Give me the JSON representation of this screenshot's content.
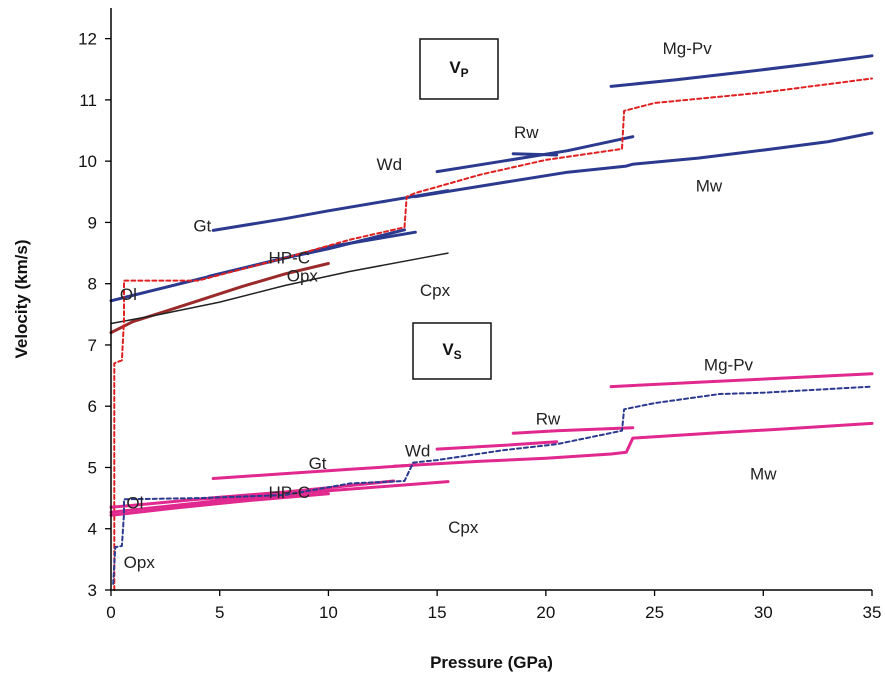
{
  "chart_data": {
    "type": "line",
    "title": "",
    "xlabel": "Pressure (GPa)",
    "ylabel": "Velocity (km/s)",
    "xlim": [
      0,
      35
    ],
    "ylim": [
      3,
      12.5
    ],
    "xticks": [
      "0",
      "5",
      "10",
      "15",
      "20",
      "25",
      "30",
      "35"
    ],
    "yticks": [
      "3",
      "4",
      "5",
      "6",
      "7",
      "8",
      "9",
      "10",
      "11",
      "12"
    ],
    "grid": false,
    "legend": "none",
    "panel_labels": {
      "vp": {
        "main": "V",
        "sub": "P"
      },
      "vs": {
        "main": "V",
        "sub": "S"
      }
    },
    "colors": {
      "vp_mineral": "#2b3a8f",
      "vs_mineral": "#e0288f",
      "opx_vp": "#9b2a2a",
      "cpx_vp": "#222222",
      "model_vp": "#e02020",
      "model_vs": "#2b3a8f"
    },
    "series": [
      {
        "name": "Ol",
        "kind": "vp-mineral",
        "x": [
          0,
          5,
          8,
          10,
          13.5
        ],
        "y": [
          7.72,
          8.16,
          8.42,
          8.57,
          8.88
        ]
      },
      {
        "name": "HP-C",
        "kind": "vp-mineral",
        "x": [
          4.5,
          8,
          10,
          14
        ],
        "y": [
          8.12,
          8.42,
          8.6,
          8.84
        ]
      },
      {
        "name": "Gt",
        "kind": "vp-mineral",
        "x": [
          4.7,
          8,
          10,
          13,
          15.5
        ],
        "y": [
          8.87,
          9.06,
          9.19,
          9.37,
          9.52
        ]
      },
      {
        "name": "Wd",
        "kind": "vp-mineral",
        "x": [
          15,
          18,
          21,
          24
        ],
        "y": [
          9.83,
          10.0,
          10.17,
          10.4
        ]
      },
      {
        "name": "Rw",
        "kind": "vp-mineral",
        "x": [
          18.5,
          20.5
        ],
        "y": [
          10.12,
          10.1
        ]
      },
      {
        "name": "Mw",
        "kind": "vp-mineral",
        "x": [
          14,
          18,
          21,
          23.7,
          24,
          27,
          30,
          33,
          35
        ],
        "y": [
          9.42,
          9.65,
          9.82,
          9.92,
          9.95,
          10.05,
          10.18,
          10.32,
          10.46
        ]
      },
      {
        "name": "Mg-Pv",
        "kind": "vp-mineral",
        "x": [
          23,
          26,
          29,
          32,
          35
        ],
        "y": [
          11.22,
          11.33,
          11.45,
          11.58,
          11.72
        ]
      },
      {
        "name": "Opx",
        "kind": "vp-opx",
        "x": [
          0,
          1,
          2.5,
          4,
          6,
          8,
          10
        ],
        "y": [
          7.2,
          7.38,
          7.55,
          7.72,
          7.95,
          8.16,
          8.33
        ]
      },
      {
        "name": "Cpx",
        "kind": "vp-cpx",
        "x": [
          0,
          2,
          5,
          8,
          11,
          14,
          15.5
        ],
        "y": [
          7.35,
          7.48,
          7.7,
          7.97,
          8.2,
          8.4,
          8.5
        ]
      },
      {
        "name": "Vp model",
        "kind": "vp-model",
        "x": [
          0.15,
          0.15,
          0.5,
          0.6,
          0.6,
          4,
          8,
          11,
          13.5,
          13.6,
          14,
          15,
          17,
          20,
          23.5,
          23.6,
          25,
          30,
          35
        ],
        "y": [
          3.0,
          6.7,
          6.75,
          7.4,
          8.05,
          8.05,
          8.42,
          8.72,
          8.92,
          9.42,
          9.48,
          9.58,
          9.78,
          10.02,
          10.2,
          10.82,
          10.95,
          11.12,
          11.35
        ]
      },
      {
        "name": "Ol",
        "kind": "vs-mineral",
        "x": [
          0,
          4,
          7,
          10
        ],
        "y": [
          4.35,
          4.48,
          4.55,
          4.62
        ]
      },
      {
        "name": "Opx",
        "kind": "vs-mineral",
        "x": [
          0,
          3,
          6,
          10
        ],
        "y": [
          4.22,
          4.34,
          4.45,
          4.57
        ]
      },
      {
        "name": "HP-C",
        "kind": "vs-mineral",
        "x": [
          4.5,
          8,
          10,
          13
        ],
        "y": [
          4.5,
          4.6,
          4.67,
          4.78
        ]
      },
      {
        "name": "Cpx",
        "kind": "vs-mineral",
        "x": [
          0,
          5,
          10,
          15.5
        ],
        "y": [
          4.27,
          4.46,
          4.62,
          4.77
        ]
      },
      {
        "name": "Gt",
        "kind": "vs-mineral",
        "x": [
          4.7,
          8,
          11,
          14
        ],
        "y": [
          4.82,
          4.9,
          4.97,
          5.04
        ]
      },
      {
        "name": "Wd",
        "kind": "vs-mineral",
        "x": [
          15,
          18,
          20.5
        ],
        "y": [
          5.3,
          5.36,
          5.42
        ]
      },
      {
        "name": "Mw",
        "kind": "vs-mineral",
        "x": [
          13,
          17,
          20,
          23,
          23.7,
          24,
          28,
          31,
          35
        ],
        "y": [
          5.02,
          5.1,
          5.15,
          5.22,
          5.25,
          5.48,
          5.57,
          5.63,
          5.72
        ]
      },
      {
        "name": "Rw",
        "kind": "vs-mineral",
        "x": [
          18.5,
          20.5,
          24
        ],
        "y": [
          5.56,
          5.6,
          5.65
        ]
      },
      {
        "name": "Mg-Pv",
        "kind": "vs-mineral",
        "x": [
          23,
          27,
          31,
          35
        ],
        "y": [
          6.32,
          6.39,
          6.46,
          6.53
        ]
      },
      {
        "name": "Vs model",
        "kind": "vs-model",
        "x": [
          0.1,
          0.2,
          0.5,
          0.6,
          0.6,
          4,
          8,
          11,
          13.5,
          13.9,
          15,
          18,
          20.5,
          23.5,
          23.6,
          25,
          28,
          30,
          35
        ],
        "y": [
          3.1,
          3.7,
          3.72,
          4.25,
          4.48,
          4.5,
          4.55,
          4.74,
          4.78,
          5.08,
          5.12,
          5.28,
          5.38,
          5.6,
          5.95,
          6.05,
          6.2,
          6.22,
          6.32
        ]
      }
    ],
    "annotations": [
      {
        "text": "Mg-Pv",
        "x": 26.5,
        "y": 11.85,
        "anchor": "middle"
      },
      {
        "text": "Rw",
        "x": 19.1,
        "y": 10.48,
        "anchor": "middle"
      },
      {
        "text": "Wd",
        "x": 12.8,
        "y": 9.95,
        "anchor": "middle"
      },
      {
        "text": "Mw",
        "x": 27.5,
        "y": 9.6,
        "anchor": "middle"
      },
      {
        "text": "Gt",
        "x": 4.2,
        "y": 8.95,
        "anchor": "middle"
      },
      {
        "text": "HP-C",
        "x": 8.2,
        "y": 8.43,
        "anchor": "middle"
      },
      {
        "text": "Opx",
        "x": 8.8,
        "y": 8.13,
        "anchor": "middle"
      },
      {
        "text": "Ol",
        "x": 0.8,
        "y": 7.83,
        "anchor": "middle"
      },
      {
        "text": "Cpx",
        "x": 14.9,
        "y": 7.9,
        "anchor": "middle"
      },
      {
        "text": "Mg-Pv",
        "x": 28.4,
        "y": 6.68,
        "anchor": "middle"
      },
      {
        "text": "Rw",
        "x": 20.1,
        "y": 5.8,
        "anchor": "middle"
      },
      {
        "text": "Wd",
        "x": 14.1,
        "y": 5.28,
        "anchor": "middle"
      },
      {
        "text": "Gt",
        "x": 9.5,
        "y": 5.07,
        "anchor": "middle"
      },
      {
        "text": "Mw",
        "x": 30,
        "y": 4.9,
        "anchor": "middle"
      },
      {
        "text": "HP-C",
        "x": 8.2,
        "y": 4.6,
        "anchor": "middle"
      },
      {
        "text": "Ol",
        "x": 1.1,
        "y": 4.43,
        "anchor": "middle"
      },
      {
        "text": "Cpx",
        "x": 16.2,
        "y": 4.03,
        "anchor": "middle"
      },
      {
        "text": "Opx",
        "x": 1.3,
        "y": 3.46,
        "anchor": "middle"
      }
    ]
  }
}
